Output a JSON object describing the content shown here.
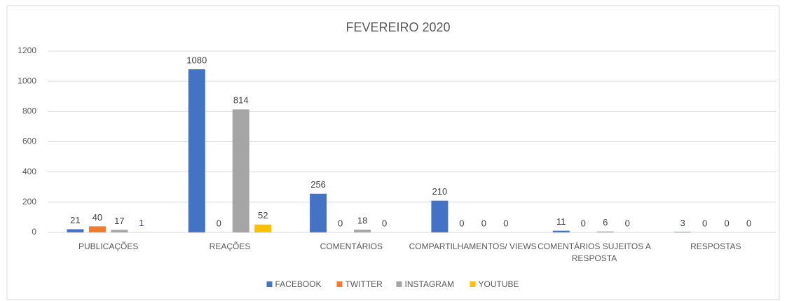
{
  "chart_data": {
    "type": "bar",
    "title": "FEVEREIRO 2020",
    "categories": [
      "PUBLICAÇÕES",
      "REAÇÕES",
      "COMENTÁRIOS",
      "COMPARTILHAMENTOS/ VIEWS",
      "COMENTÁRIOS SUJEITOS A RESPOSTA",
      "RESPOSTAS"
    ],
    "series": [
      {
        "name": "FACEBOOK",
        "color": "#4472c4",
        "values": [
          21,
          1080,
          256,
          210,
          11,
          3
        ]
      },
      {
        "name": "TWITTER",
        "color": "#ed7d31",
        "values": [
          40,
          0,
          0,
          0,
          0,
          0
        ]
      },
      {
        "name": "INSTAGRAM",
        "color": "#a5a5a5",
        "values": [
          17,
          814,
          18,
          0,
          6,
          0
        ]
      },
      {
        "name": "YOUTUBE",
        "color": "#ffc000",
        "values": [
          1,
          52,
          0,
          0,
          0,
          0
        ]
      }
    ],
    "ylim": [
      0,
      1200
    ],
    "yticks": [
      0,
      200,
      400,
      600,
      800,
      1000,
      1200
    ],
    "grid": true,
    "legend": "bottom"
  }
}
